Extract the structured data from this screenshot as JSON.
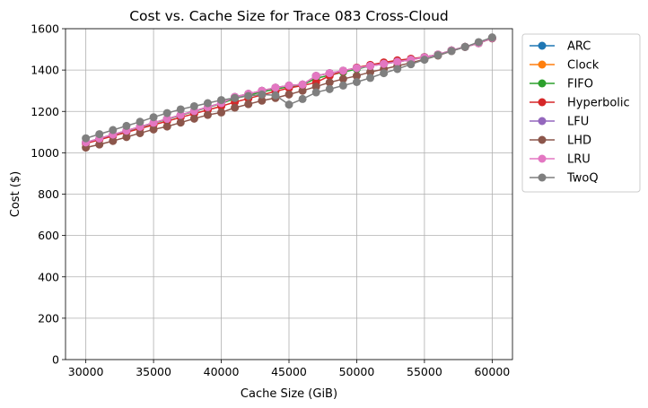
{
  "chart_data": {
    "type": "line",
    "title": "Cost vs. Cache Size for Trace 083 Cross-Cloud",
    "xlabel": "Cache Size (GiB)",
    "ylabel": "Cost ($)",
    "xlim": [
      28500,
      61500
    ],
    "ylim": [
      0,
      1600
    ],
    "xticks": [
      30000,
      35000,
      40000,
      45000,
      50000,
      55000,
      60000
    ],
    "yticks": [
      0,
      200,
      400,
      600,
      800,
      1000,
      1200,
      1400,
      1600
    ],
    "grid": true,
    "legend_position": "outside-right-top",
    "x": [
      30000,
      31000,
      32000,
      33000,
      34000,
      35000,
      36000,
      37000,
      38000,
      39000,
      40000,
      41000,
      42000,
      43000,
      44000,
      45000,
      46000,
      47000,
      48000,
      49000,
      50000,
      51000,
      52000,
      53000,
      54000,
      55000,
      56000,
      57000,
      58000,
      59000,
      60000
    ],
    "series": [
      {
        "name": "ARC",
        "color": "#1f77b4",
        "values": [
          1050,
          1069,
          1088,
          1107,
          1126,
          1145,
          1164,
          1183,
          1202,
          1221,
          1240,
          1270,
          1285,
          1300,
          1315,
          1325,
          1330,
          1372,
          1385,
          1397,
          1410,
          1420,
          1430,
          1440,
          1450,
          1462,
          1475,
          1495,
          1512,
          1530,
          1555
        ]
      },
      {
        "name": "Clock",
        "color": "#ff7f0e",
        "values": [
          1050,
          1069,
          1088,
          1107,
          1126,
          1145,
          1164,
          1183,
          1202,
          1221,
          1240,
          1270,
          1285,
          1300,
          1315,
          1325,
          1330,
          1372,
          1385,
          1397,
          1410,
          1420,
          1430,
          1440,
          1450,
          1462,
          1475,
          1495,
          1512,
          1530,
          1555
        ]
      },
      {
        "name": "FIFO",
        "color": "#2ca02c",
        "values": [
          1048,
          1067,
          1086,
          1105,
          1124,
          1143,
          1162,
          1181,
          1200,
          1219,
          1238,
          1262,
          1278,
          1294,
          1308,
          1320,
          1328,
          1360,
          1375,
          1390,
          1405,
          1420,
          1432,
          1443,
          1452,
          1463,
          1475,
          1495,
          1512,
          1530,
          1555
        ]
      },
      {
        "name": "Hyperbolic",
        "color": "#d62728",
        "values": [
          1045,
          1063,
          1081,
          1099,
          1117,
          1135,
          1153,
          1171,
          1189,
          1207,
          1225,
          1245,
          1262,
          1280,
          1297,
          1313,
          1325,
          1340,
          1372,
          1395,
          1412,
          1425,
          1437,
          1447,
          1455,
          1463,
          1475,
          1495,
          1512,
          1530,
          1555
        ]
      },
      {
        "name": "LFU",
        "color": "#9467bd",
        "values": [
          1050,
          1069,
          1088,
          1107,
          1126,
          1145,
          1164,
          1183,
          1202,
          1221,
          1240,
          1270,
          1285,
          1300,
          1315,
          1325,
          1330,
          1372,
          1385,
          1397,
          1410,
          1420,
          1430,
          1440,
          1450,
          1462,
          1475,
          1495,
          1512,
          1530,
          1555
        ]
      },
      {
        "name": "LHD",
        "color": "#8c564b",
        "values": [
          1025,
          1040,
          1057,
          1076,
          1095,
          1113,
          1127,
          1146,
          1165,
          1183,
          1195,
          1218,
          1235,
          1252,
          1265,
          1282,
          1300,
          1320,
          1340,
          1357,
          1372,
          1390,
          1405,
          1420,
          1435,
          1452,
          1470,
          1492,
          1512,
          1530,
          1553
        ]
      },
      {
        "name": "LRU",
        "color": "#e377c2",
        "values": [
          1050,
          1069,
          1088,
          1107,
          1126,
          1145,
          1164,
          1183,
          1202,
          1221,
          1240,
          1270,
          1285,
          1300,
          1315,
          1325,
          1330,
          1372,
          1385,
          1397,
          1410,
          1420,
          1430,
          1440,
          1450,
          1462,
          1475,
          1495,
          1512,
          1530,
          1555
        ]
      },
      {
        "name": "TwoQ",
        "color": "#7f7f7f",
        "values": [
          1070,
          1090,
          1110,
          1130,
          1150,
          1172,
          1192,
          1210,
          1225,
          1240,
          1255,
          1265,
          1275,
          1282,
          1278,
          1233,
          1260,
          1292,
          1308,
          1325,
          1342,
          1362,
          1385,
          1405,
          1428,
          1450,
          1472,
          1492,
          1512,
          1535,
          1558
        ]
      }
    ]
  }
}
